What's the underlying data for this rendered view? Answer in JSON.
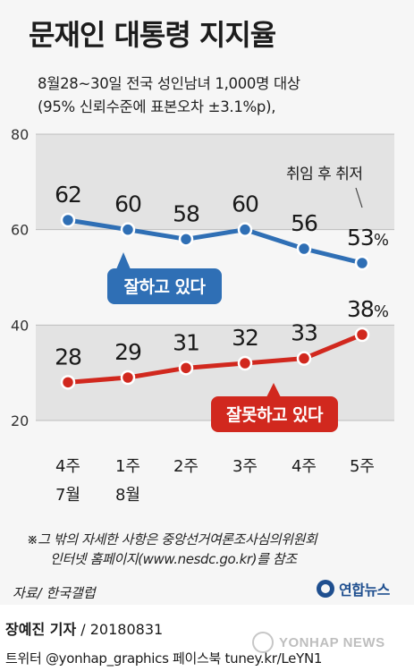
{
  "title": "문재인 대통령 지지율",
  "subtitle_1": "8월28~30일 전국 성인남녀 1,000명 대상",
  "subtitle_2": "(95% 신뢰수준에 표본오차 ±3.1%p),",
  "footnote_1": "※그 밖의 자세한 사항은 중앙선거여론조사심의위원회",
  "footnote_2": "인터넷 홈페이지(www.nesdc.go.kr)를 참조",
  "source": "자료/ 한국갤럽",
  "logo": "연합뉴스",
  "byline_name": "장예진 기자",
  "byline_date": "/ 20180831",
  "social": "트위터 @yonhap_graphics  페이스북 tuney.kr/LeYN1",
  "watermark": "YONHAP NEWS",
  "chart_data": {
    "type": "line",
    "categories": [
      [
        "4주",
        "7월"
      ],
      [
        "1주",
        "8월"
      ],
      [
        "2주",
        ""
      ],
      [
        "3주",
        ""
      ],
      [
        "4주",
        ""
      ],
      [
        "5주",
        ""
      ]
    ],
    "series": [
      {
        "name": "잘하고 있다",
        "values": [
          62,
          60,
          58,
          60,
          56,
          53
        ],
        "color": "#2f6fb5",
        "labels": [
          "62",
          "60",
          "58",
          "60",
          "56",
          "53%"
        ]
      },
      {
        "name": "잘못하고 있다",
        "values": [
          28,
          29,
          31,
          32,
          33,
          38
        ],
        "color": "#d1281e",
        "labels": [
          "28",
          "29",
          "31",
          "32",
          "33",
          "38%"
        ]
      }
    ],
    "ylim": [
      20,
      80
    ],
    "yticks": [
      "80",
      "60",
      "40",
      "20"
    ],
    "annotation": "취임 후 취저",
    "grid": true
  }
}
